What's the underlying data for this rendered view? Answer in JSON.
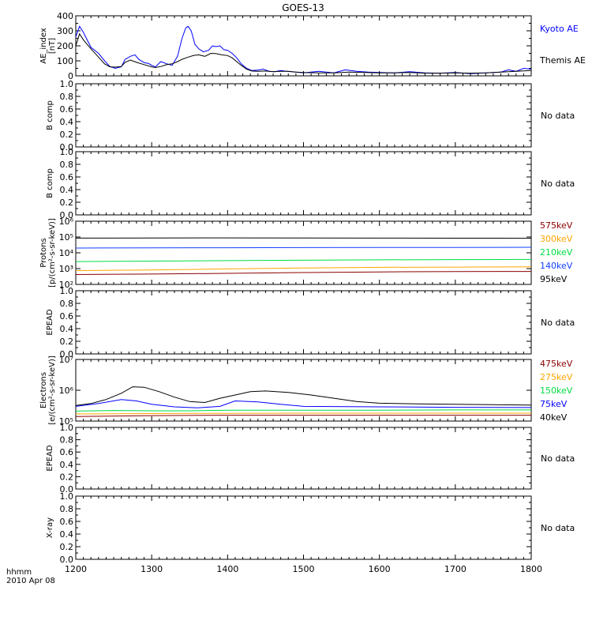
{
  "title": "GOES-13",
  "x_axis": {
    "ticks": [
      "1200",
      "1300",
      "1400",
      "1500",
      "1600",
      "1700",
      "1800"
    ],
    "label_line1": "hhmm",
    "label_line2": "2010 Apr 08"
  },
  "no_data_text": "No data",
  "chart_data": [
    {
      "type": "line",
      "panel": "ae",
      "ylabel_lines": [
        "AE_index",
        "[nT]"
      ],
      "ylim": [
        0,
        400
      ],
      "yticks": [
        "0",
        "100",
        "200",
        "300",
        "400"
      ],
      "x_range": [
        1200,
        1800
      ],
      "series": [
        {
          "name": "Kyoto AE",
          "color": "#0000ff",
          "points": [
            [
              1200,
              260
            ],
            [
              1205,
              330
            ],
            [
              1210,
              290
            ],
            [
              1220,
              190
            ],
            [
              1230,
              150
            ],
            [
              1238,
              100
            ],
            [
              1245,
              62
            ],
            [
              1252,
              50
            ],
            [
              1260,
              60
            ],
            [
              1265,
              110
            ],
            [
              1272,
              130
            ],
            [
              1278,
              140
            ],
            [
              1283,
              110
            ],
            [
              1290,
              88
            ],
            [
              1296,
              82
            ],
            [
              1300,
              70
            ],
            [
              1305,
              60
            ],
            [
              1312,
              95
            ],
            [
              1320,
              80
            ],
            [
              1327,
              70
            ],
            [
              1334,
              130
            ],
            [
              1340,
              250
            ],
            [
              1345,
              320
            ],
            [
              1348,
              330
            ],
            [
              1352,
              300
            ],
            [
              1357,
              210
            ],
            [
              1362,
              180
            ],
            [
              1368,
              160
            ],
            [
              1375,
              170
            ],
            [
              1380,
              200
            ],
            [
              1385,
              195
            ],
            [
              1390,
              200
            ],
            [
              1395,
              175
            ],
            [
              1400,
              170
            ],
            [
              1406,
              150
            ],
            [
              1412,
              120
            ],
            [
              1418,
              80
            ],
            [
              1425,
              50
            ],
            [
              1432,
              35
            ],
            [
              1440,
              38
            ],
            [
              1447,
              45
            ],
            [
              1455,
              30
            ],
            [
              1462,
              28
            ],
            [
              1470,
              35
            ],
            [
              1478,
              30
            ],
            [
              1490,
              25
            ],
            [
              1500,
              20
            ],
            [
              1510,
              25
            ],
            [
              1520,
              30
            ],
            [
              1530,
              25
            ],
            [
              1540,
              20
            ],
            [
              1555,
              40
            ],
            [
              1570,
              30
            ],
            [
              1585,
              25
            ],
            [
              1600,
              22
            ],
            [
              1620,
              20
            ],
            [
              1640,
              28
            ],
            [
              1660,
              20
            ],
            [
              1680,
              18
            ],
            [
              1700,
              22
            ],
            [
              1720,
              15
            ],
            [
              1740,
              20
            ],
            [
              1760,
              25
            ],
            [
              1770,
              40
            ],
            [
              1780,
              30
            ],
            [
              1790,
              50
            ],
            [
              1800,
              45
            ]
          ]
        },
        {
          "name": "Themis AE",
          "color": "#000000",
          "points": [
            [
              1200,
              200
            ],
            [
              1205,
              280
            ],
            [
              1210,
              240
            ],
            [
              1220,
              180
            ],
            [
              1230,
              125
            ],
            [
              1238,
              80
            ],
            [
              1245,
              60
            ],
            [
              1252,
              58
            ],
            [
              1260,
              62
            ],
            [
              1265,
              90
            ],
            [
              1272,
              105
            ],
            [
              1280,
              90
            ],
            [
              1290,
              75
            ],
            [
              1300,
              60
            ],
            [
              1305,
              55
            ],
            [
              1312,
              62
            ],
            [
              1320,
              75
            ],
            [
              1327,
              80
            ],
            [
              1334,
              95
            ],
            [
              1340,
              110
            ],
            [
              1348,
              125
            ],
            [
              1355,
              135
            ],
            [
              1362,
              140
            ],
            [
              1370,
              130
            ],
            [
              1378,
              150
            ],
            [
              1385,
              148
            ],
            [
              1392,
              140
            ],
            [
              1400,
              135
            ],
            [
              1406,
              120
            ],
            [
              1412,
              95
            ],
            [
              1418,
              70
            ],
            [
              1425,
              45
            ],
            [
              1432,
              32
            ],
            [
              1440,
              30
            ],
            [
              1450,
              32
            ],
            [
              1460,
              28
            ],
            [
              1470,
              30
            ],
            [
              1480,
              30
            ],
            [
              1490,
              25
            ],
            [
              1500,
              22
            ],
            [
              1520,
              20
            ],
            [
              1540,
              20
            ],
            [
              1560,
              25
            ],
            [
              1580,
              22
            ],
            [
              1600,
              20
            ],
            [
              1620,
              20
            ],
            [
              1640,
              22
            ],
            [
              1660,
              18
            ],
            [
              1680,
              18
            ],
            [
              1700,
              20
            ],
            [
              1720,
              18
            ],
            [
              1740,
              20
            ],
            [
              1760,
              25
            ],
            [
              1780,
              30
            ],
            [
              1800,
              35
            ]
          ]
        }
      ]
    },
    {
      "type": "line",
      "panel": "nodata",
      "ylabel_lines": [
        "B comp"
      ],
      "ylim": [
        0,
        1
      ],
      "yticks": [
        "0.0",
        "0.2",
        "0.4",
        "0.6",
        "0.8",
        "1.0"
      ],
      "series": []
    },
    {
      "type": "line",
      "panel": "nodata",
      "ylabel_lines": [
        "B comp"
      ],
      "ylim": [
        0,
        1
      ],
      "yticks": [
        "0.0",
        "0.2",
        "0.4",
        "0.6",
        "0.8",
        "1.0"
      ],
      "series": []
    },
    {
      "type": "line",
      "panel": "protons",
      "ylabel_lines": [
        "Protons",
        "[p/(cm²-s-sr-keV)]"
      ],
      "ylog": true,
      "ylim": [
        100,
        1000000
      ],
      "yticks": [
        "10²",
        "10³",
        "10⁴",
        "10⁵",
        "10⁶"
      ],
      "series": [
        {
          "name": "575keV",
          "color": "#8b0000",
          "points": [
            [
              1200,
              420
            ],
            [
              1300,
              450
            ],
            [
              1400,
              500
            ],
            [
              1500,
              560
            ],
            [
              1600,
              620
            ],
            [
              1700,
              650
            ],
            [
              1800,
              660
            ]
          ]
        },
        {
          "name": "300keV",
          "color": "#ffa500",
          "points": [
            [
              1200,
              750
            ],
            [
              1300,
              820
            ],
            [
              1400,
              950
            ],
            [
              1500,
              1100
            ],
            [
              1600,
              1200
            ],
            [
              1700,
              1250
            ],
            [
              1800,
              1300
            ]
          ]
        },
        {
          "name": "210keV",
          "color": "#00dd44",
          "points": [
            [
              1200,
              2800
            ],
            [
              1300,
              3000
            ],
            [
              1400,
              3200
            ],
            [
              1500,
              3400
            ],
            [
              1600,
              3600
            ],
            [
              1700,
              3700
            ],
            [
              1800,
              3800
            ]
          ]
        },
        {
          "name": "140keV",
          "color": "#1040ff",
          "points": [
            [
              1200,
              20000
            ],
            [
              1300,
              20500
            ],
            [
              1400,
              21000
            ],
            [
              1500,
              21500
            ],
            [
              1600,
              22000
            ],
            [
              1700,
              22000
            ],
            [
              1800,
              22500
            ]
          ]
        },
        {
          "name": "95keV",
          "color": "#000000",
          "points": [
            [
              1200,
              85000
            ],
            [
              1300,
              86000
            ],
            [
              1400,
              88000
            ],
            [
              1500,
              87000
            ],
            [
              1600,
              85000
            ],
            [
              1700,
              84000
            ],
            [
              1800,
              83000
            ]
          ]
        }
      ]
    },
    {
      "type": "line",
      "panel": "nodata",
      "ylabel_lines": [
        "EPEAD"
      ],
      "ylim": [
        0,
        1
      ],
      "yticks": [
        "0.0",
        "0.2",
        "0.4",
        "0.6",
        "0.8",
        "1.0"
      ],
      "series": []
    },
    {
      "type": "line",
      "panel": "electrons",
      "ylabel_lines": [
        "Electrons",
        "[e/(cm²-s-sr-keV)]"
      ],
      "ylog": true,
      "ylim": [
        100000,
        10000000
      ],
      "yticks": [
        "10⁵",
        "10⁶",
        "10⁷"
      ],
      "series": [
        {
          "name": "475keV",
          "color": "#8b0000",
          "points": [
            [
              1200,
              140000
            ],
            [
              1300,
              150000
            ],
            [
              1400,
              155000
            ],
            [
              1500,
              155000
            ],
            [
              1600,
              155000
            ],
            [
              1700,
              155000
            ],
            [
              1800,
              155000
            ]
          ]
        },
        {
          "name": "275keV",
          "color": "#ffa500",
          "points": [
            [
              1200,
              170000
            ],
            [
              1300,
              175000
            ],
            [
              1400,
              178000
            ],
            [
              1500,
              180000
            ],
            [
              1600,
              180000
            ],
            [
              1700,
              180000
            ],
            [
              1800,
              180000
            ]
          ]
        },
        {
          "name": "150keV",
          "color": "#00dd44",
          "points": [
            [
              1200,
              210000
            ],
            [
              1250,
              220000
            ],
            [
              1300,
              215000
            ],
            [
              1350,
              215000
            ],
            [
              1400,
              225000
            ],
            [
              1500,
              225000
            ],
            [
              1600,
              225000
            ],
            [
              1700,
              230000
            ],
            [
              1800,
              230000
            ]
          ]
        },
        {
          "name": "75keV",
          "color": "#0000ff",
          "points": [
            [
              1200,
              300000
            ],
            [
              1230,
              370000
            ],
            [
              1260,
              500000
            ],
            [
              1280,
              450000
            ],
            [
              1300,
              350000
            ],
            [
              1330,
              290000
            ],
            [
              1360,
              270000
            ],
            [
              1390,
              300000
            ],
            [
              1410,
              450000
            ],
            [
              1440,
              420000
            ],
            [
              1470,
              350000
            ],
            [
              1500,
              300000
            ],
            [
              1600,
              290000
            ],
            [
              1700,
              280000
            ],
            [
              1800,
              275000
            ]
          ]
        },
        {
          "name": "40keV",
          "color": "#000000",
          "points": [
            [
              1200,
              320000
            ],
            [
              1220,
              370000
            ],
            [
              1240,
              500000
            ],
            [
              1260,
              800000
            ],
            [
              1275,
              1300000
            ],
            [
              1290,
              1250000
            ],
            [
              1310,
              900000
            ],
            [
              1330,
              600000
            ],
            [
              1350,
              430000
            ],
            [
              1370,
              400000
            ],
            [
              1390,
              550000
            ],
            [
              1410,
              700000
            ],
            [
              1430,
              900000
            ],
            [
              1450,
              950000
            ],
            [
              1480,
              850000
            ],
            [
              1510,
              700000
            ],
            [
              1540,
              550000
            ],
            [
              1570,
              430000
            ],
            [
              1600,
              380000
            ],
            [
              1650,
              360000
            ],
            [
              1700,
              350000
            ],
            [
              1750,
              340000
            ],
            [
              1800,
              330000
            ]
          ]
        }
      ]
    },
    {
      "type": "line",
      "panel": "nodata",
      "ylabel_lines": [
        "EPEAD"
      ],
      "ylim": [
        0,
        1
      ],
      "yticks": [
        "0.0",
        "0.2",
        "0.4",
        "0.6",
        "0.8",
        "1.0"
      ],
      "series": []
    },
    {
      "type": "line",
      "panel": "nodata",
      "ylabel_lines": [
        "X-ray"
      ],
      "ylim": [
        0,
        1
      ],
      "yticks": [
        "0.0",
        "0.2",
        "0.4",
        "0.6",
        "0.8",
        "1.0"
      ],
      "series": []
    }
  ]
}
